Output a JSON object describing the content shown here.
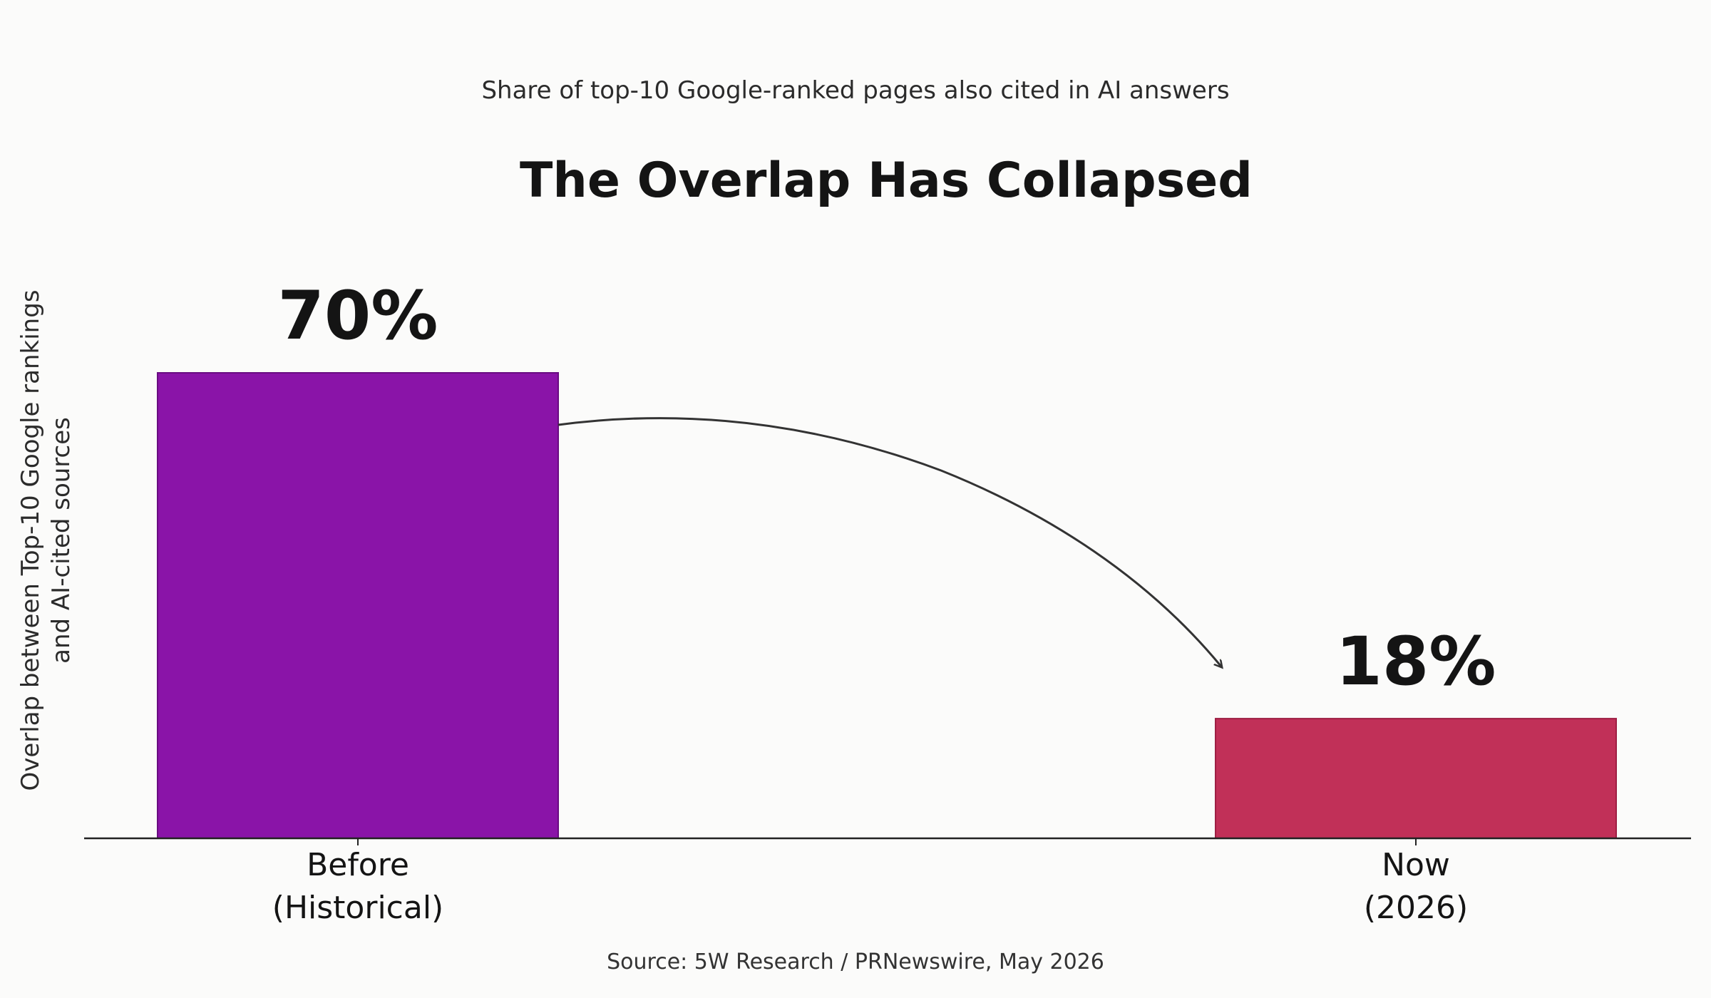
{
  "chart_data": {
    "type": "bar",
    "subtitle": "Share of top-10 Google-ranked pages also cited in AI answers",
    "title": "The Overlap Has Collapsed",
    "ylabel": [
      "Overlap between Top-10 Google rankings",
      "and AI-cited sources"
    ],
    "xlabel": "",
    "categories": [
      [
        "Before",
        "(Historical)"
      ],
      [
        "Now",
        "(2026)"
      ]
    ],
    "values": [
      70,
      18
    ],
    "value_labels": [
      "70%",
      "18%"
    ],
    "colors": [
      "#8a14a8",
      "#c13058"
    ],
    "ylim": [
      0,
      80
    ],
    "grid": false,
    "annotation": "curved arrow from first bar to second bar",
    "source": "Source: 5W Research / PRNewswire, May 2026"
  }
}
